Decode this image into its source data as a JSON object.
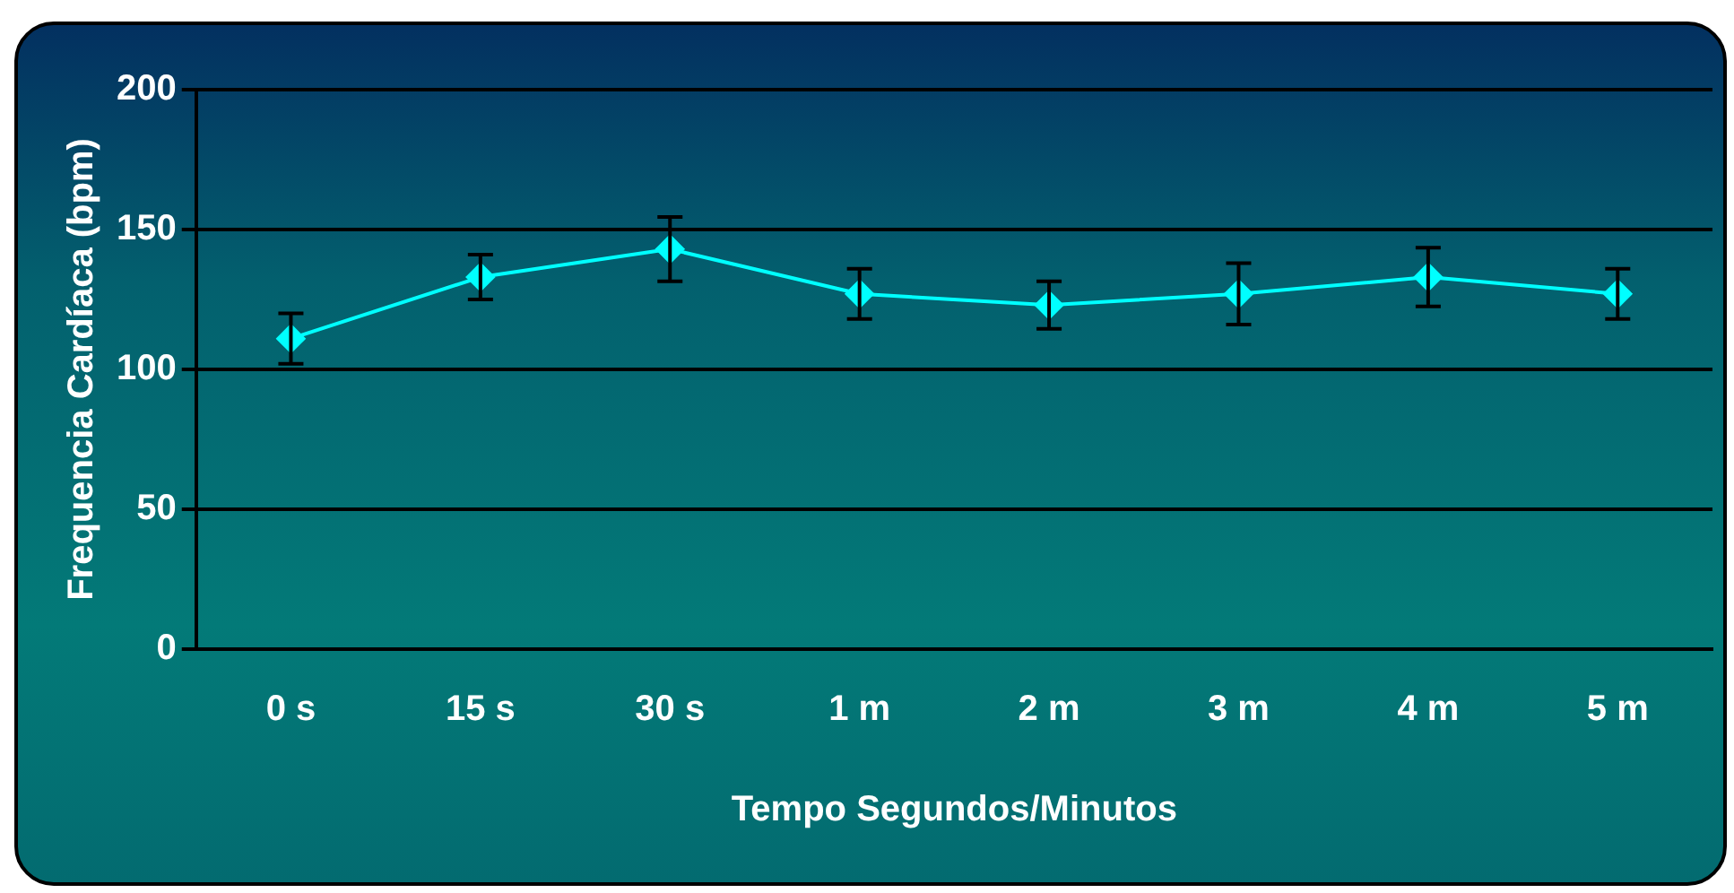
{
  "chart_data": {
    "type": "line",
    "xlabel": "Tempo Segundos/Minutos",
    "ylabel": "Frequencia Cardíaca (bpm)",
    "categories": [
      "0 s",
      "15 s",
      "30 s",
      "1 m",
      "2 m",
      "3 m",
      "4 m",
      "5 m"
    ],
    "series": [
      {
        "color": "#00ffff",
        "values": [
          111,
          133,
          143,
          127,
          123,
          127,
          133,
          127
        ],
        "errors": [
          9,
          8,
          11.5,
          9,
          8.5,
          11,
          10.5,
          9
        ]
      }
    ],
    "ylim": [
      0,
      200
    ],
    "yticks": [
      0,
      50,
      100,
      150,
      200
    ],
    "grid": "y",
    "legend": false,
    "marker": "diamond",
    "line_style": "solid"
  }
}
